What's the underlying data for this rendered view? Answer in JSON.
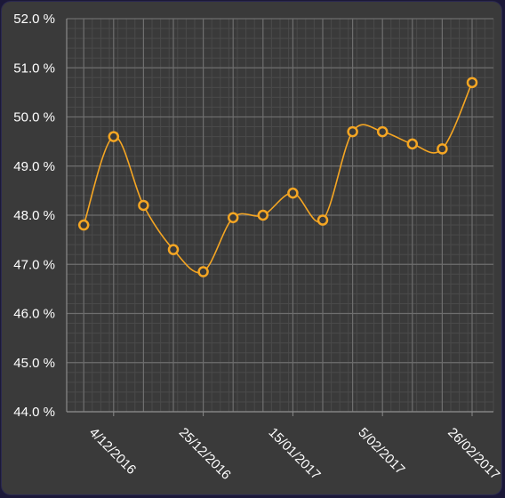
{
  "chart_data": {
    "type": "line",
    "title": "",
    "xlabel": "",
    "ylabel": "",
    "ylim": [
      44.0,
      52.0
    ],
    "y_ticks": [
      44.0,
      45.0,
      46.0,
      47.0,
      48.0,
      49.0,
      50.0,
      51.0,
      52.0
    ],
    "y_tick_labels": [
      "44.0 %",
      "45.0 %",
      "46.0 %",
      "47.0 %",
      "48.0 %",
      "49.0 %",
      "50.0 %",
      "51.0 %",
      "52.0 %"
    ],
    "x_tick_labels": [
      "4/12/2016",
      "25/12/2016",
      "15/01/2017",
      "5/02/2017",
      "26/02/2017"
    ],
    "x_tick_dates": [
      "2016-12-04",
      "2016-12-25",
      "2017-01-15",
      "2017-02-05",
      "2017-02-26"
    ],
    "x_range": [
      "2016-11-23",
      "2017-03-03"
    ],
    "grid": true,
    "legend": "none",
    "colors": {
      "line": "#f5a623",
      "background": "#3a3a3a",
      "major_grid": "#6e6e6e",
      "minor_grid": "#4a4a4a",
      "text": "#ffffff"
    },
    "series": [
      {
        "x": [
          "2016-11-27",
          "2016-12-04",
          "2016-12-11",
          "2016-12-18",
          "2016-12-25",
          "2017-01-01",
          "2017-01-08",
          "2017-01-15",
          "2017-01-22",
          "2017-01-29",
          "2017-02-05",
          "2017-02-12",
          "2017-02-19",
          "2017-02-26"
        ],
        "values": [
          47.8,
          49.6,
          48.2,
          47.3,
          46.85,
          47.95,
          48.0,
          48.45,
          47.9,
          49.7,
          49.7,
          49.45,
          49.35,
          50.7
        ]
      }
    ]
  }
}
